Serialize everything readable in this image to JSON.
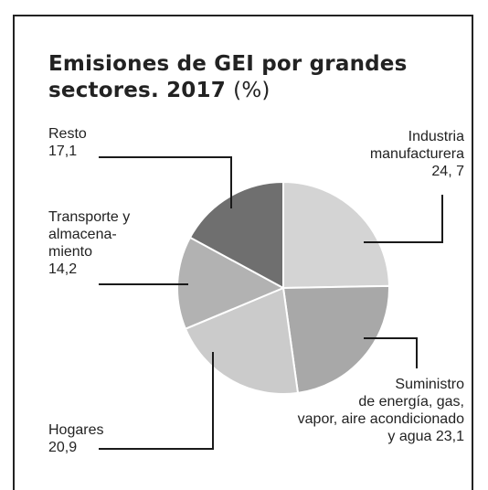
{
  "chart_data": {
    "type": "pie",
    "title": "Emisiones de GEI por grandes sectores. 2017",
    "unit": "(%)",
    "slices": [
      {
        "name": "Industria manufacturera",
        "label_lines": [
          "Industria",
          "manufacturera",
          "24, 7"
        ],
        "value": 24.7,
        "color": "#d4d4d4"
      },
      {
        "name": "Suministro de energía, gas, vapor, aire acondicionado y agua",
        "label_lines": [
          "Suministro",
          "de energía, gas,",
          "vapor, aire acondicionado",
          "y agua 23,1"
        ],
        "value": 23.1,
        "color": "#a8a8a8"
      },
      {
        "name": "Hogares",
        "label_lines": [
          "Hogares",
          "20,9"
        ],
        "value": 20.9,
        "color": "#cbcbcb"
      },
      {
        "name": "Transporte y almacenamiento",
        "label_lines": [
          "Transporte y",
          "almacena-",
          "miento",
          "14,2"
        ],
        "value": 14.2,
        "color": "#b2b2b2"
      },
      {
        "name": "Resto",
        "label_lines": [
          "Resto",
          "17,1"
        ],
        "value": 17.1,
        "color": "#6f6f6f"
      }
    ]
  }
}
